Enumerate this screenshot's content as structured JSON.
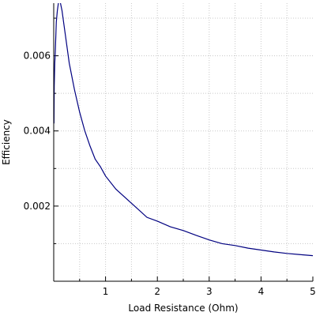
{
  "chart_data": {
    "type": "line",
    "title": "",
    "xlabel": "Load Resistance (Ohm)",
    "ylabel": "Efficiency",
    "xlim": [
      0,
      5
    ],
    "ylim": [
      0,
      0.0074
    ],
    "x_ticks": [
      {
        "value": 1,
        "label": "1"
      },
      {
        "value": 2,
        "label": "2"
      },
      {
        "value": 3,
        "label": "3"
      },
      {
        "value": 4,
        "label": "4"
      },
      {
        "value": 5,
        "label": "5"
      }
    ],
    "y_ticks": [
      {
        "value": 0.002,
        "label": "0.002"
      },
      {
        "value": 0.004,
        "label": "0.004"
      },
      {
        "value": 0.006,
        "label": "0.006"
      }
    ],
    "grid": true,
    "legend": "none",
    "series_color": "#000080",
    "series": [
      {
        "x": [
          0.005,
          0.01,
          0.02,
          0.03,
          0.05,
          0.07,
          0.1,
          0.13,
          0.16,
          0.2,
          0.25,
          0.3,
          0.4,
          0.5,
          0.6,
          0.7,
          0.8,
          0.9,
          1.0,
          1.2,
          1.4,
          1.6,
          1.8,
          2.0,
          2.25,
          2.5,
          2.75,
          3.0,
          3.25,
          3.5,
          3.75,
          4.0,
          4.25,
          4.5,
          4.75,
          5.0
        ],
        "y": [
          0.0042,
          0.0052,
          0.0058,
          0.0061,
          0.0069,
          0.0072,
          0.0075,
          0.0074,
          0.0072,
          0.0068,
          0.0063,
          0.0058,
          0.0051,
          0.0045,
          0.004,
          0.0036,
          0.00325,
          0.00305,
          0.0028,
          0.00245,
          0.0022,
          0.00195,
          0.0017,
          0.0016,
          0.00145,
          0.00135,
          0.00122,
          0.0011,
          0.001,
          0.00095,
          0.00088,
          0.00083,
          0.00078,
          0.00074,
          0.00071,
          0.00068
        ]
      }
    ]
  }
}
